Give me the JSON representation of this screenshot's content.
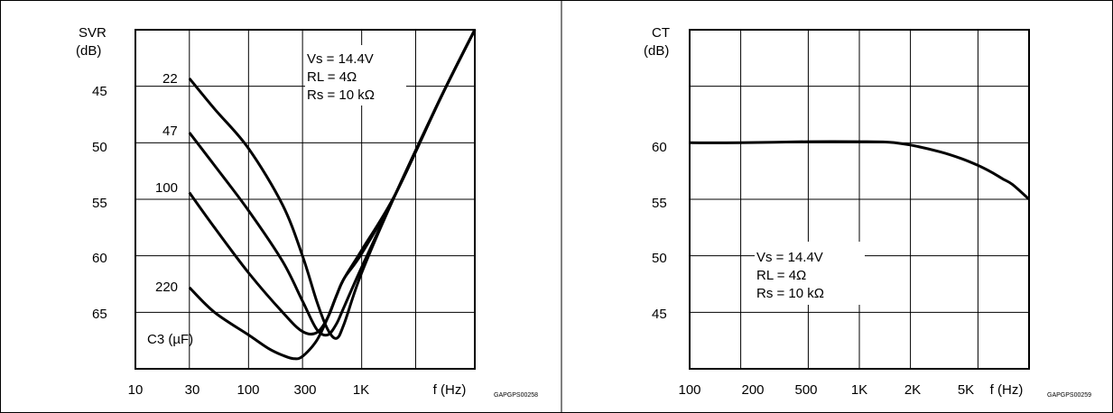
{
  "chart_data": [
    {
      "type": "line",
      "ylabel": "SVR",
      "yunit": "(dB)",
      "xlabel": "f (Hz)",
      "x_scale": "log",
      "y_axis": "inverted",
      "ylim": [
        70,
        40
      ],
      "xlim": [
        10,
        10000
      ],
      "grid": true,
      "y_ticks": [
        "45",
        "50",
        "55",
        "60",
        "65"
      ],
      "x_ticks": [
        "10",
        "30",
        "100",
        "300",
        "1K"
      ],
      "conditions": [
        "Vs = 14.4V",
        "RL = 4Ω",
        "Rs = 10 kΩ"
      ],
      "legend_title": "C3 (µF)",
      "series": [
        {
          "name": "22",
          "x": [
            30,
            50,
            100,
            200,
            300,
            400,
            500,
            600,
            700,
            1000,
            2000,
            5000,
            10000
          ],
          "y": [
            44.3,
            47,
            50.5,
            55.5,
            60,
            64,
            66.5,
            67.3,
            66,
            61.5,
            54.5,
            46,
            40
          ]
        },
        {
          "name": "47",
          "x": [
            30,
            50,
            100,
            200,
            300,
            400,
            500,
            600,
            700,
            1000,
            2000,
            5000,
            10000
          ],
          "y": [
            49.1,
            52,
            56,
            60.5,
            64,
            66.5,
            67,
            66,
            64.5,
            61,
            54.5,
            46,
            40
          ]
        },
        {
          "name": "100",
          "x": [
            30,
            50,
            100,
            200,
            300,
            400,
            500,
            600,
            700,
            1000,
            2000,
            5000,
            10000
          ],
          "y": [
            54.4,
            57.5,
            61.5,
            65,
            66.7,
            66.8,
            65.5,
            63.5,
            62,
            59.8,
            54.5,
            46,
            40
          ]
        },
        {
          "name": "220",
          "x": [
            30,
            50,
            100,
            150,
            200,
            250,
            300,
            400,
            500,
            600,
            700,
            1000,
            2000,
            5000,
            10000
          ],
          "y": [
            62.8,
            65,
            67,
            68.2,
            68.8,
            69.1,
            68.9,
            67.5,
            65.5,
            63.5,
            62,
            59.5,
            54.5,
            46,
            40
          ]
        }
      ],
      "code": "GAPGPS00258"
    },
    {
      "type": "line",
      "ylabel": "CT",
      "yunit": "(dB)",
      "xlabel": "f (Hz)",
      "x_scale": "log",
      "ylim": [
        40,
        70
      ],
      "xlim": [
        100,
        10000
      ],
      "grid": true,
      "y_ticks": [
        "60",
        "55",
        "50",
        "45"
      ],
      "x_ticks": [
        "100",
        "200",
        "500",
        "1K",
        "2K",
        "5K"
      ],
      "conditions": [
        "Vs = 14.4V",
        "RL = 4Ω",
        "Rs = 10 kΩ"
      ],
      "series": [
        {
          "x": [
            100,
            200,
            500,
            1000,
            1500,
            2000,
            3000,
            4000,
            5000,
            6000,
            7000,
            8000,
            10000
          ],
          "y": [
            60,
            60,
            60.1,
            60.1,
            60.05,
            59.8,
            59.2,
            58.6,
            58,
            57.4,
            56.8,
            56.3,
            55
          ]
        }
      ],
      "code": "GAPGPS00259"
    }
  ]
}
